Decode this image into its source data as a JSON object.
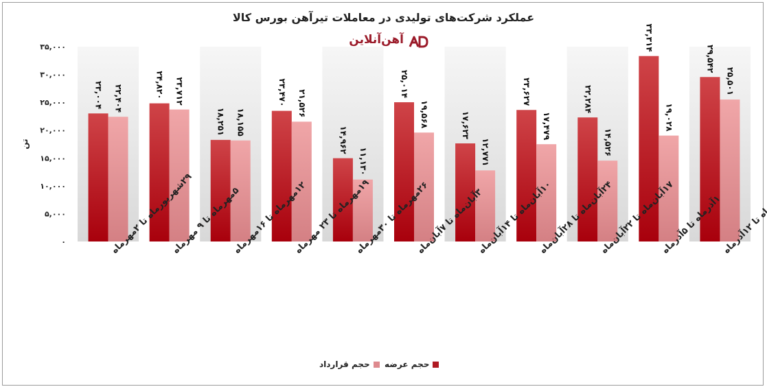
{
  "chart_data": {
    "type": "bar",
    "title": "عملکرد شرکت‌های تولیدی در معاملات تیرآهن بورس کالا",
    "ylabel": "تن",
    "ylim": [
      0,
      35000
    ],
    "yticks": [
      "۰",
      "۵,۰۰۰",
      "۱۰,۰۰۰",
      "۱۵,۰۰۰",
      "۲۰,۰۰۰",
      "۲۵,۰۰۰",
      "۳۰,۰۰۰",
      "۳۵,۰۰۰"
    ],
    "ytick_values": [
      0,
      5000,
      10000,
      15000,
      20000,
      25000,
      30000,
      35000
    ],
    "categories": [
      "۲۹شهریورماه تا ۲مهرماه",
      "۵مهرماه تا ۹ مهرماه",
      "۱۲مهرماه تا ۱۶مهرماه",
      "۱۹مهرماه تا ۲۳ مهرماه",
      "۲۶مهرماه تا ۳۰مهرماه",
      "۳آبان‌ماه تا ۷آبان‌ماه",
      "۱۰آبان‌ماه تا ۱۴آبان‌ماه",
      "۲۴آبان‌ماه تا ۲۸آبان‌ماه",
      "۱۷آبان‌ماه تا ۲۲آبان‌ماه",
      "۱آذرماه تا ۵آذرماه",
      "۸آذرماه تا ۱۲آذرماه"
    ],
    "series": [
      {
        "name": "حجم عرضه",
        "color": "#b01a22",
        "values": [
          23004,
          24820,
          18251,
          23470,
          14962,
          25014,
          17623,
          23627,
          22284,
          33314,
          29542
        ],
        "labels": [
          "۲۳,۰۰۴",
          "۲۴,۸۲۰",
          "۱۸,۲۵۱",
          "۲۳,۴۷۰",
          "۱۴,۹۶۲",
          "۲۵,۰۱۴",
          "۱۷,۶۲۳",
          "۲۳,۶۲۷",
          "۲۲,۲۸۴",
          "۳۳,۳۱۴",
          "۲۹,۵۴۲"
        ]
      },
      {
        "name": "حجم قرارداد",
        "color": "#de8a8e",
        "values": [
          22404,
          23712,
          18155,
          21526,
          11130,
          19568,
          12771,
          17479,
          14526,
          19028,
          25501
        ],
        "labels": [
          "۲۲,۴۰۴",
          "۲۳,۷۱۲",
          "۱۸,۱۵۵",
          "۲۱,۵۲۶",
          "۱۱,۱۳۰",
          "۱۹,۵۶۸",
          "۱۲,۷۷۱",
          "۱۷,۴۷۹",
          "۱۴,۵۲۶",
          "۱۹,۰۲۸",
          "۲۵,۵۰۱"
        ]
      }
    ],
    "grid": false,
    "legend_position": "bottom"
  },
  "logo": {
    "text": "آهن‌آنلاین"
  }
}
